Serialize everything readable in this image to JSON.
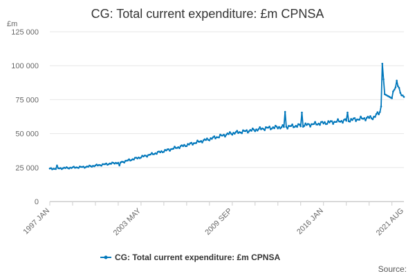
{
  "chart_data": {
    "type": "line",
    "title": "CG: Total current expenditure: £m CPNSA",
    "ylabel_unit": "£m",
    "xlabel": "",
    "ylim": [
      0,
      125000
    ],
    "yticks": [
      0,
      25000,
      50000,
      75000,
      100000,
      125000
    ],
    "ytick_labels": [
      "0",
      "25 000",
      "50 000",
      "75 000",
      "100 000",
      "125 000"
    ],
    "xticks": [
      {
        "label": "1997 JAN",
        "index": 0
      },
      {
        "label": "2003 MAY",
        "index": 76
      },
      {
        "label": "2009 SEP",
        "index": 152
      },
      {
        "label": "2016 JAN",
        "index": 228
      },
      {
        "label": "2021 AUG",
        "index": 295
      }
    ],
    "series": [
      {
        "name": "CG: Total current expenditure: £m CPNSA",
        "color": "#0077bb",
        "anchors": [
          {
            "index": 0,
            "value": 24000
          },
          {
            "index": 30,
            "value": 25500
          },
          {
            "index": 60,
            "value": 29000
          },
          {
            "index": 90,
            "value": 36000
          },
          {
            "index": 120,
            "value": 43000
          },
          {
            "index": 150,
            "value": 50000
          },
          {
            "index": 180,
            "value": 54000
          },
          {
            "index": 210,
            "value": 56000
          },
          {
            "index": 240,
            "value": 59000
          },
          {
            "index": 270,
            "value": 62000
          },
          {
            "index": 275,
            "value": 66000
          },
          {
            "index": 276,
            "value": 70000
          },
          {
            "index": 277,
            "value": 101500
          },
          {
            "index": 278,
            "value": 90000
          },
          {
            "index": 279,
            "value": 79000
          },
          {
            "index": 285,
            "value": 76000
          },
          {
            "index": 289,
            "value": 89000
          },
          {
            "index": 292,
            "value": 80000
          },
          {
            "index": 295,
            "value": 77000
          }
        ],
        "spikes": [
          {
            "index": 6,
            "value": 26500
          },
          {
            "index": 58,
            "value": 26500
          },
          {
            "index": 196,
            "value": 66000
          },
          {
            "index": 210,
            "value": 65500
          },
          {
            "index": 248,
            "value": 65500
          }
        ]
      }
    ],
    "legend": {
      "position": "bottom",
      "label": "CG: Total current expenditure: £m CPNSA"
    },
    "grid": true
  },
  "footer": {
    "source_label": "Source:"
  }
}
